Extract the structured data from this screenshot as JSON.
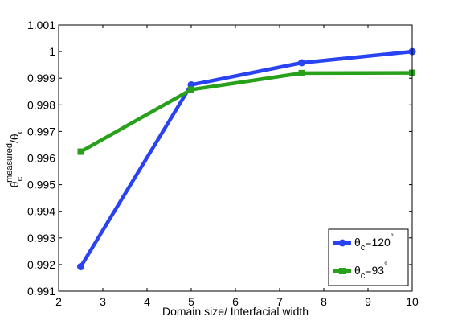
{
  "chart_data": {
    "type": "line",
    "x": [
      2.5,
      5,
      7.5,
      10
    ],
    "series": [
      {
        "name_symbol": "θ",
        "name_sub": "c",
        "name_rest": "=120",
        "name_sup": "°",
        "values": [
          0.99192,
          0.99875,
          0.99958,
          1.0
        ],
        "color": "#2942f2",
        "marker": "circle"
      },
      {
        "name_symbol": "θ",
        "name_sub": "c",
        "name_rest": "=93",
        "name_sup": "°",
        "values": [
          0.99624,
          0.99857,
          0.99919,
          0.9992
        ],
        "color": "#27a11a",
        "marker": "square"
      }
    ],
    "xlabel": "Domain size/ Interfacial width",
    "ylabel_parts": {
      "theta1": "θ",
      "sub1": "c",
      "sup1": "measured",
      "slash": "/",
      "theta2": "θ",
      "sub2": "c"
    },
    "xlim": [
      2,
      10
    ],
    "ylim": [
      0.991,
      1.001
    ],
    "xticks": [
      "2",
      "3",
      "4",
      "5",
      "6",
      "7",
      "8",
      "9",
      "10"
    ],
    "yticks": [
      "0.991",
      "0.992",
      "0.993",
      "0.994",
      "0.995",
      "0.996",
      "0.997",
      "0.998",
      "0.999",
      "1",
      "1.001"
    ],
    "grid": false,
    "legend_position": "bottom-right"
  }
}
